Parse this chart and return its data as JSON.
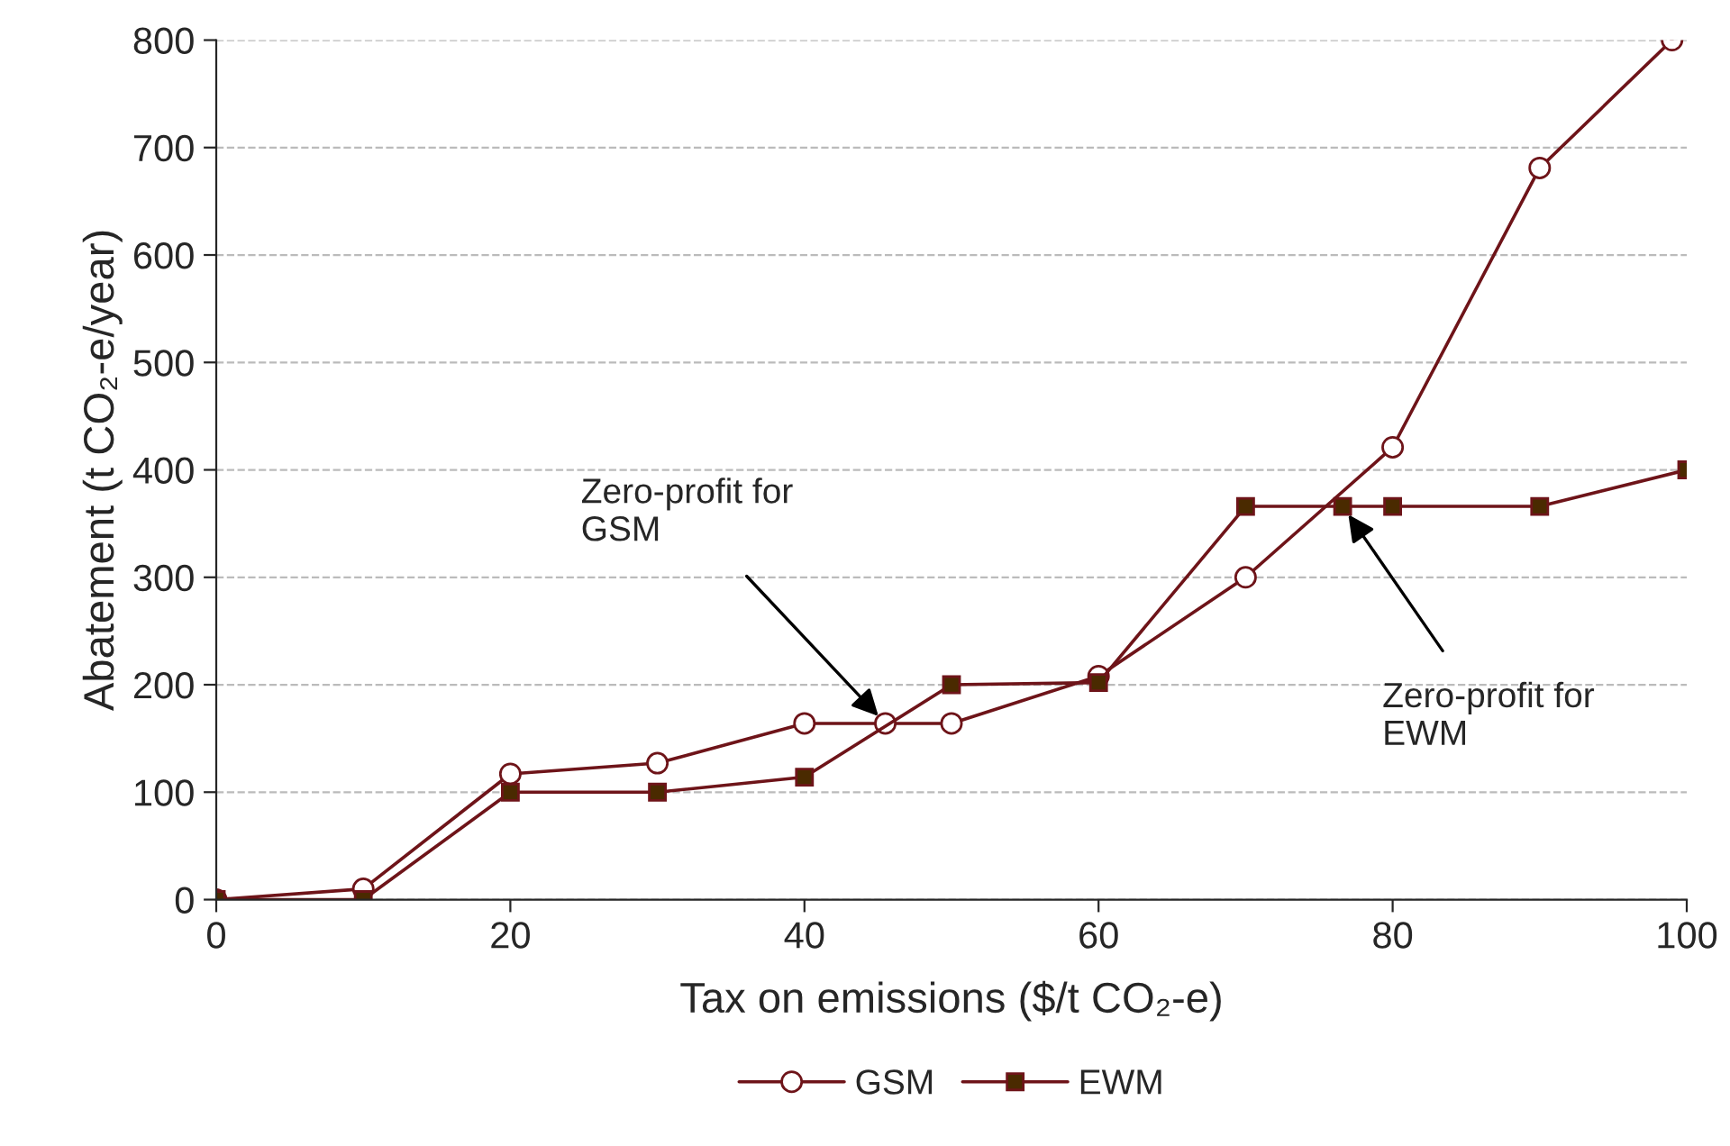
{
  "chart_data": {
    "type": "line",
    "xlabel": "Tax on emissions ($/t CO₂-e)",
    "ylabel": "Abatement (t CO₂-e/year)",
    "xlim": [
      0,
      100
    ],
    "xticks": [
      0,
      20,
      40,
      60,
      80,
      100
    ],
    "ylim": [
      0,
      800
    ],
    "yticks": [
      0,
      100,
      200,
      300,
      400,
      500,
      600,
      700,
      800
    ],
    "grid": "y",
    "legend": "bottom",
    "line_style": "solid",
    "series": [
      {
        "name": "GSM",
        "color": "#6e1419",
        "marker": "circle",
        "x": [
          0,
          10,
          20,
          30,
          40,
          45.5,
          50,
          60,
          70,
          80,
          90,
          99
        ],
        "values": [
          0,
          10,
          117,
          127,
          164,
          164,
          164,
          208,
          300,
          421,
          681,
          800
        ]
      },
      {
        "name": "EWM",
        "color": "#6e1419",
        "marker": "square",
        "x": [
          0,
          10,
          20,
          30,
          40,
          50,
          60,
          70,
          76.6,
          80,
          90,
          100
        ],
        "values": [
          0,
          0,
          100,
          100,
          114,
          200,
          202,
          366,
          366,
          366,
          366,
          400
        ]
      }
    ],
    "annotations": [
      {
        "text": "Zero-profit for\nGSM",
        "x": 45.5,
        "y": 164
      },
      {
        "text": "Zero-profit for\nEWM",
        "x": 76.6,
        "y": 366
      }
    ]
  }
}
